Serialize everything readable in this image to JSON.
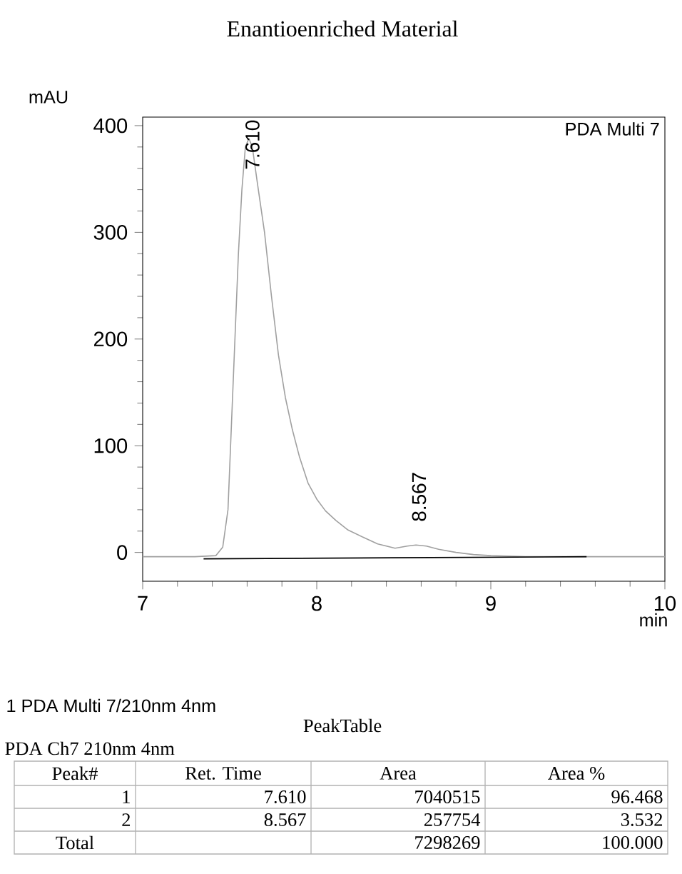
{
  "chart_data": {
    "type": "line",
    "title": "Enantioenriched Material",
    "xlabel": "min",
    "ylabel": "mAU",
    "x": [
      7.0,
      7.3,
      7.42,
      7.46,
      7.49,
      7.51,
      7.53,
      7.55,
      7.57,
      7.59,
      7.61,
      7.63,
      7.66,
      7.7,
      7.74,
      7.78,
      7.82,
      7.86,
      7.9,
      7.95,
      8.0,
      8.05,
      8.11,
      8.18,
      8.27,
      8.35,
      8.45,
      8.52,
      8.57,
      8.63,
      8.7,
      8.8,
      8.9,
      9.0,
      9.2,
      10.0
    ],
    "series": [
      {
        "color": "#a0a0a0",
        "values": [
          -4,
          -4,
          -3,
          5,
          40,
          120,
          200,
          280,
          340,
          380,
          388,
          380,
          345,
          300,
          240,
          185,
          145,
          115,
          90,
          65,
          50,
          39,
          30,
          21,
          14,
          8,
          4,
          6,
          7,
          6,
          3,
          0,
          -2,
          -3,
          -4,
          -4
        ]
      },
      {
        "color": "#000000",
        "x": [
          7.35,
          8.44,
          9.55
        ],
        "values": [
          -6,
          -5,
          -4
        ]
      }
    ],
    "xlim": [
      7,
      10
    ],
    "ylim": [
      -27,
      408
    ],
    "xticks": [
      7,
      8,
      9,
      10
    ],
    "yticks": [
      0,
      100,
      200,
      300,
      400
    ],
    "grid": false,
    "marker": "none",
    "line_style": "solid",
    "annotations": [
      "PDA Multi 7",
      {
        "text": "7.610",
        "x": 7.61,
        "y": 388
      },
      {
        "text": "8.567",
        "x": 8.567,
        "y": 7
      },
      "1  PDA Multi 7/210nm 4nm",
      "PeakTable",
      "PDA Ch7 210nm 4nm",
      "Peak#",
      "Ret. Time",
      "Area",
      "Area %",
      "1",
      "7.610",
      "7040515",
      "96.468",
      "2",
      "8.567",
      "257754",
      "3.532",
      "Total",
      "7298269",
      "100.000"
    ]
  }
}
